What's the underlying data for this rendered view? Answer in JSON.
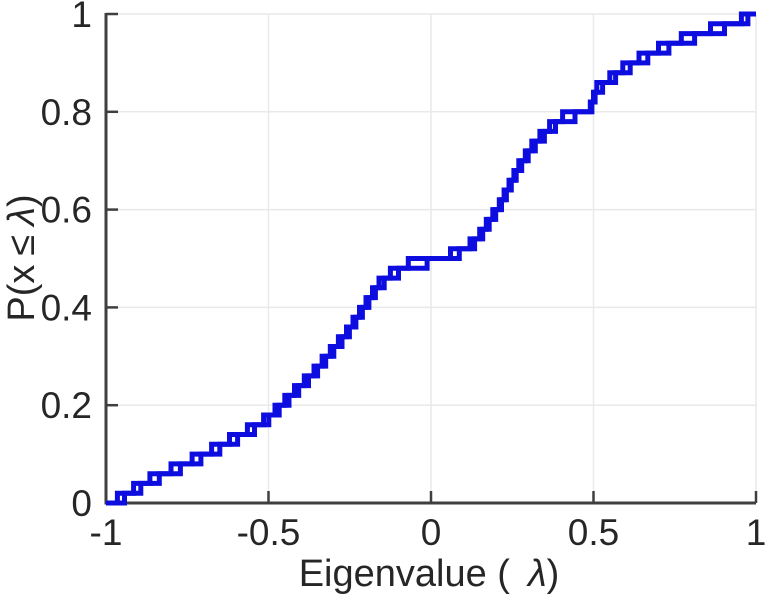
{
  "figure": {
    "background": "#ffffff",
    "axes_color": "#3f3f3f",
    "tick_label_color": "#262626",
    "grid_color": "#e9e9e9",
    "line_color": "#0d0de0",
    "line_width": 5
  },
  "chart_data": {
    "type": "line",
    "subtype": "empirical-cdf-stairs",
    "title": "",
    "xlabel": {
      "prefix": "Eigenvalue (",
      "lambda": "λ",
      "suffix": ")"
    },
    "ylabel": {
      "prefix": "P(x",
      "leq": "≤",
      "lambda": "λ",
      "suffix": ")"
    },
    "xlim": [
      -1,
      1
    ],
    "ylim": [
      0,
      1
    ],
    "grid": true,
    "legend_position": "none",
    "xticks": {
      "values": [
        -1,
        -0.5,
        0,
        0.5,
        1
      ],
      "labels": [
        "-1",
        "-0.5",
        "0",
        "0.5",
        "1"
      ]
    },
    "yticks": {
      "values": [
        0,
        0.2,
        0.4,
        0.6,
        0.8,
        1
      ],
      "labels": [
        "0",
        "0.2",
        "0.4",
        "0.6",
        "0.8",
        "1"
      ]
    },
    "series": [
      {
        "name": "eigenvalue-ecdf-1",
        "color": "#0d0de0",
        "eigenvalues": [
          -0.965,
          -0.915,
          -0.865,
          -0.8,
          -0.735,
          -0.675,
          -0.62,
          -0.565,
          -0.515,
          -0.48,
          -0.45,
          -0.42,
          -0.39,
          -0.36,
          -0.335,
          -0.31,
          -0.285,
          -0.26,
          -0.24,
          -0.22,
          -0.2,
          -0.18,
          -0.16,
          -0.125,
          -0.07,
          0.06,
          0.12,
          0.15,
          0.17,
          0.19,
          0.21,
          0.225,
          0.24,
          0.255,
          0.27,
          0.29,
          0.31,
          0.335,
          0.365,
          0.405,
          0.49,
          0.5,
          0.51,
          0.55,
          0.59,
          0.64,
          0.7,
          0.77,
          0.86,
          0.955
        ]
      },
      {
        "name": "eigenvalue-ecdf-2",
        "color": "#0d0de0",
        "eigenvalues": [
          -0.943,
          -0.893,
          -0.836,
          -0.771,
          -0.708,
          -0.65,
          -0.595,
          -0.543,
          -0.499,
          -0.467,
          -0.437,
          -0.407,
          -0.377,
          -0.349,
          -0.324,
          -0.299,
          -0.274,
          -0.251,
          -0.231,
          -0.211,
          -0.191,
          -0.171,
          -0.144,
          -0.1,
          -0.012,
          0.087,
          0.134,
          0.159,
          0.179,
          0.199,
          0.217,
          0.232,
          0.247,
          0.262,
          0.279,
          0.299,
          0.321,
          0.349,
          0.383,
          0.443,
          0.495,
          0.505,
          0.528,
          0.568,
          0.613,
          0.667,
          0.732,
          0.811,
          0.903,
          0.975
        ]
      }
    ]
  }
}
